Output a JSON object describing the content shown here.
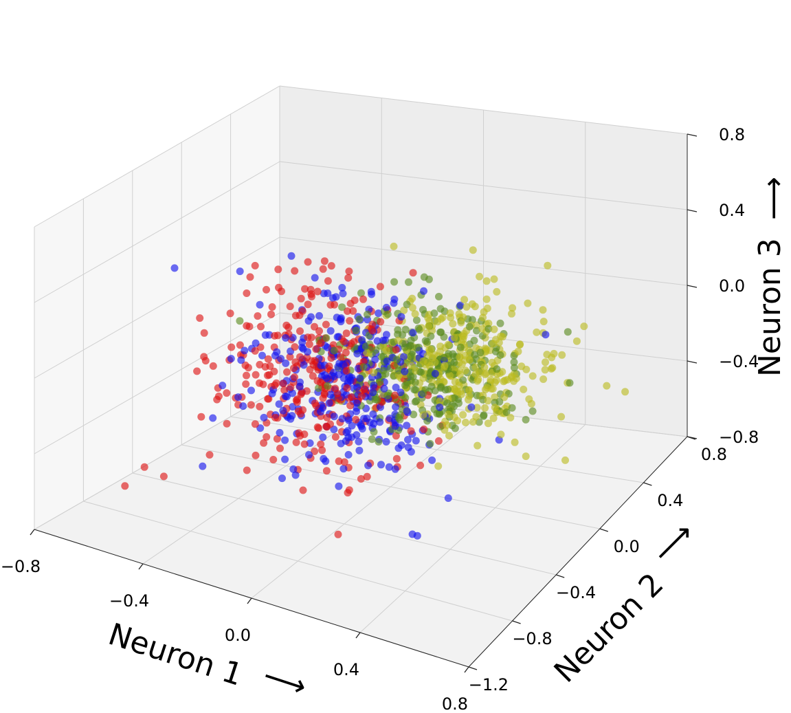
{
  "chart_data": {
    "type": "scatter",
    "projection": "3d",
    "title": "",
    "xlabel": "Neuron 1",
    "ylabel": "Neuron 2",
    "zlabel": "Neuron 3",
    "axis_label_arrow": "⟶",
    "xlim": [
      -0.8,
      0.8
    ],
    "ylim": [
      -1.2,
      0.8
    ],
    "zlim": [
      -0.8,
      0.8
    ],
    "x_ticks": [
      "−0.8",
      "−0.4",
      "0.0",
      "0.4",
      "0.8"
    ],
    "y_ticks": [
      "−1.2",
      "−0.8",
      "−0.4",
      "0.0",
      "0.4",
      "0.8"
    ],
    "z_ticks": [
      "−0.8",
      "−0.4",
      "0.0",
      "0.4",
      "0.8"
    ],
    "grid": true,
    "legend": "none",
    "series": [
      {
        "color": "#dd1111",
        "center": [
          -0.05,
          -0.55,
          0.05
        ],
        "spread": [
          0.25,
          0.3,
          0.3
        ],
        "points": [
          [
            -0.6,
            -0.9,
            -0.6
          ],
          [
            -0.55,
            -0.85,
            -0.5
          ],
          [
            -0.5,
            -0.8,
            -0.55
          ],
          [
            -0.45,
            -0.6,
            -0.3
          ],
          [
            -0.3,
            -0.7,
            0.1
          ],
          [
            -0.25,
            -0.5,
            0.4
          ],
          [
            -0.2,
            -0.75,
            0.6
          ],
          [
            0.1,
            -0.6,
            -0.5
          ],
          [
            0.15,
            -0.8,
            -0.6
          ],
          [
            0.05,
            -0.3,
            0.2
          ]
        ]
      },
      {
        "color": "#1111ee",
        "center": [
          0.05,
          -0.45,
          0.0
        ],
        "spread": [
          0.25,
          0.28,
          0.28
        ],
        "points": [
          [
            -0.55,
            -0.6,
            0.45
          ],
          [
            -0.4,
            -0.7,
            -0.5
          ],
          [
            0.35,
            -0.3,
            -0.6
          ],
          [
            0.3,
            -0.5,
            -0.7
          ],
          [
            0.55,
            0.1,
            0.1
          ],
          [
            0.5,
            -0.2,
            -0.3
          ],
          [
            -0.2,
            -0.4,
            0.55
          ],
          [
            0.1,
            -0.2,
            0.3
          ]
        ]
      },
      {
        "color": "#5a8a1e",
        "center": [
          0.2,
          -0.15,
          -0.05
        ],
        "spread": [
          0.22,
          0.25,
          0.22
        ],
        "points": [
          [
            0.6,
            0.2,
            -0.2
          ],
          [
            0.55,
            0.3,
            0.0
          ],
          [
            -0.35,
            -0.5,
            0.2
          ],
          [
            0.4,
            0.1,
            -0.35
          ],
          [
            0.25,
            -0.1,
            0.25
          ]
        ]
      },
      {
        "color": "#bcbc21",
        "center": [
          0.3,
          -0.05,
          -0.05
        ],
        "spread": [
          0.22,
          0.25,
          0.22
        ],
        "points": [
          [
            0.75,
            0.35,
            -0.3
          ],
          [
            0.7,
            0.3,
            -0.25
          ],
          [
            0.45,
            0.35,
            0.3
          ],
          [
            0.1,
            -0.2,
            0.6
          ],
          [
            0.5,
            0.2,
            0.1
          ]
        ]
      }
    ],
    "approx_points_per_series": 300
  }
}
